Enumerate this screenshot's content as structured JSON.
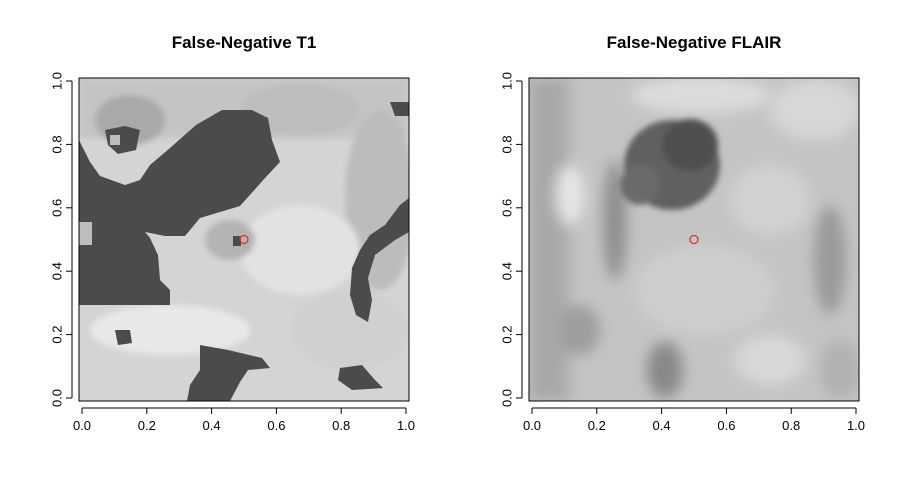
{
  "chart_data": [
    {
      "type": "heatmap",
      "title": "False-Negative T1",
      "xlabel": "",
      "ylabel": "",
      "xlim": [
        0,
        1
      ],
      "ylim": [
        0,
        1
      ],
      "x_ticks": [
        "0.0",
        "0.2",
        "0.4",
        "0.6",
        "0.8",
        "1.0"
      ],
      "y_ticks": [
        "0.0",
        "0.2",
        "0.4",
        "0.6",
        "0.8",
        "1.0"
      ],
      "grid": false,
      "colors": {
        "dark": "#4a4a4a",
        "light": "#d9d9d9",
        "marker": "#e03030"
      },
      "marker": {
        "x": 0.5,
        "y": 0.5
      }
    },
    {
      "type": "heatmap",
      "title": "False-Negative FLAIR",
      "xlabel": "",
      "ylabel": "",
      "xlim": [
        0,
        1
      ],
      "ylim": [
        0,
        1
      ],
      "x_ticks": [
        "0.0",
        "0.2",
        "0.4",
        "0.6",
        "0.8",
        "1.0"
      ],
      "y_ticks": [
        "0.0",
        "0.2",
        "0.4",
        "0.6",
        "0.8",
        "1.0"
      ],
      "grid": false,
      "colors": {
        "dark": "#5a5a5a",
        "light": "#c8c8c8",
        "marker": "#e03030"
      },
      "marker": {
        "x": 0.5,
        "y": 0.5
      }
    }
  ]
}
